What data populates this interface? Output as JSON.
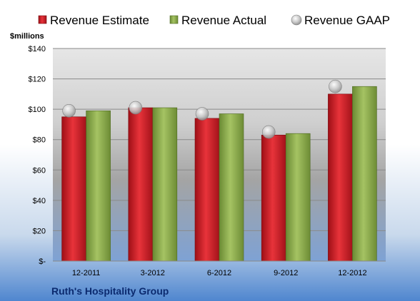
{
  "chart_data": {
    "type": "bar",
    "ylabel": "$millions",
    "company": "Ruth's Hospitality Group",
    "categories": [
      "12-2011",
      "3-2012",
      "6-2012",
      "9-2012",
      "12-2012"
    ],
    "series": [
      {
        "name": "Revenue Estimate",
        "style": "bar",
        "color": "#d4202a",
        "values": [
          95,
          101,
          94,
          83,
          110
        ]
      },
      {
        "name": "Revenue Actual",
        "style": "bar",
        "color": "#8fb04a",
        "values": [
          99,
          101,
          97,
          84,
          115
        ]
      },
      {
        "name": "Revenue GAAP",
        "style": "marker",
        "color": "#c0c0c0",
        "values": [
          99,
          101,
          97,
          85,
          115
        ]
      }
    ],
    "ylim": [
      0,
      140
    ],
    "yticks": [
      0,
      20,
      40,
      60,
      80,
      100,
      120,
      140
    ],
    "ytick_labels": [
      "$-",
      "$20",
      "$40",
      "$60",
      "$80",
      "$100",
      "$120",
      "$140"
    ],
    "grid": true,
    "legend_position": "top"
  }
}
